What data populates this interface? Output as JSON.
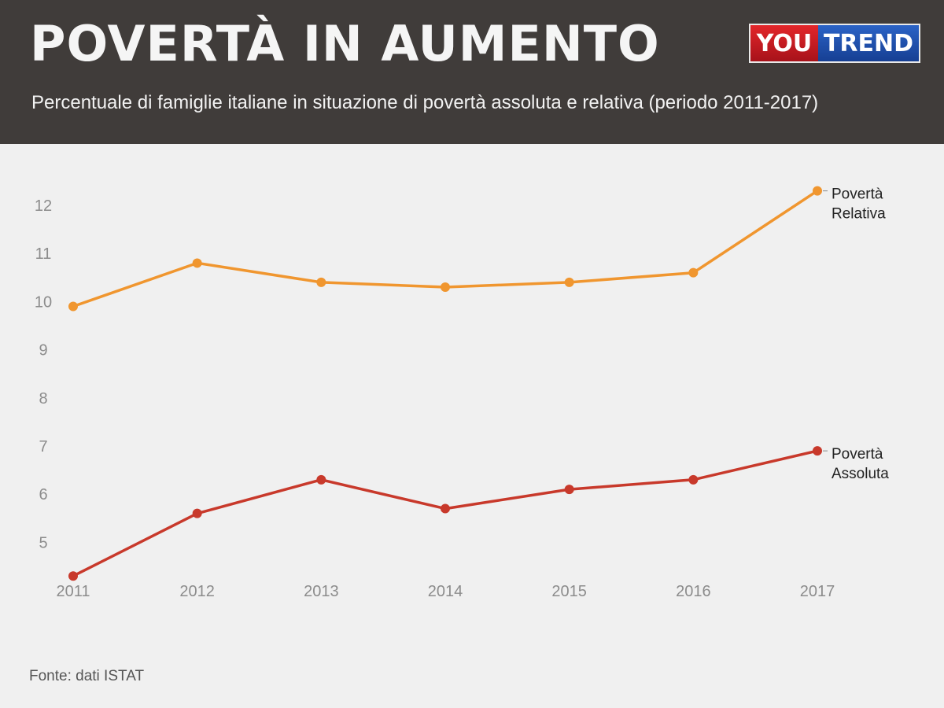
{
  "header": {
    "title": "POVERTÀ IN AUMENTO",
    "subtitle": "Percentuale di famiglie italiane in situazione di povertà assoluta e relativa (periodo 2011-2017)",
    "logo": {
      "left": "YOU",
      "right": "TREND",
      "left_color": "#d42027",
      "right_color": "#1f4fad"
    }
  },
  "chart_data": {
    "type": "line",
    "title": "",
    "xlabel": "",
    "ylabel": "",
    "x": [
      "2011",
      "2012",
      "2013",
      "2014",
      "2015",
      "2016",
      "2017"
    ],
    "ylim": [
      4.3,
      12.6
    ],
    "yticks": [
      "5",
      "6",
      "7",
      "8",
      "9",
      "10",
      "11",
      "12"
    ],
    "grid": false,
    "legend": "end-of-line labels",
    "series": [
      {
        "name": "Povertà Relativa",
        "label_lines": [
          "Povertà",
          "Relativa"
        ],
        "color": "#f0962f",
        "values": [
          9.9,
          10.8,
          10.4,
          10.3,
          10.4,
          10.6,
          12.3
        ]
      },
      {
        "name": "Povertà Assoluta",
        "label_lines": [
          "Povertà",
          "Assoluta"
        ],
        "color": "#c8392b",
        "values": [
          4.3,
          5.6,
          6.3,
          5.7,
          6.1,
          6.3,
          6.9
        ]
      }
    ]
  },
  "footer": {
    "source": "Fonte: dati ISTAT"
  }
}
